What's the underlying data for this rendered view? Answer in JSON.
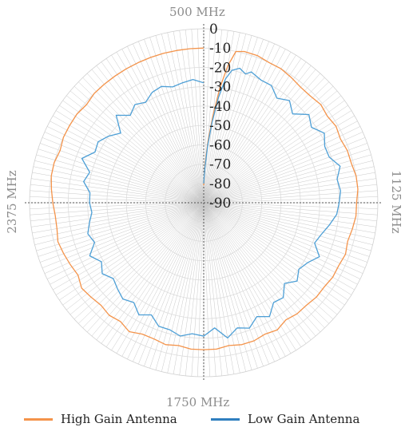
{
  "chart_data": {
    "type": "line",
    "polar": true,
    "title": "",
    "direction_labels": {
      "top": "500 MHz",
      "right": "1125 MHz",
      "bottom": "1750 MHz",
      "left": "2375 MHz"
    },
    "r_ticks": [
      0,
      -10,
      -20,
      -30,
      -40,
      -50,
      -60,
      -70,
      -80,
      -90
    ],
    "rlim": [
      -90,
      0
    ],
    "grid": true,
    "legend_position": "bottom",
    "angle_convention": "degrees clockwise from top (500 MHz at 0°, 1125 MHz at 90°, 1750 MHz at 180°, 2375 MHz at 270°)",
    "series": [
      {
        "name": "High Gain Antenna",
        "color": "#f4934a",
        "angle": [
          0,
          2,
          4,
          6,
          8,
          10,
          12,
          15,
          20,
          25,
          30,
          35,
          40,
          45,
          50,
          55,
          60,
          65,
          70,
          75,
          80,
          85,
          90,
          95,
          100,
          105,
          110,
          115,
          120,
          125,
          130,
          135,
          140,
          145,
          150,
          155,
          160,
          165,
          170,
          175,
          180,
          185,
          190,
          195,
          200,
          205,
          210,
          215,
          220,
          225,
          230,
          235,
          240,
          245,
          250,
          255,
          260,
          265,
          270,
          275,
          280,
          285,
          290,
          295,
          300,
          305,
          310,
          315,
          320,
          325,
          330,
          335,
          340,
          345,
          350,
          355,
          360
        ],
        "value": [
          -81,
          -70,
          -58,
          -45,
          -30,
          -18,
          -10,
          -9,
          -9,
          -10,
          -10,
          -11,
          -12,
          -12,
          -11,
          -12,
          -11,
          -12,
          -11,
          -11,
          -10,
          -10,
          -11,
          -11,
          -12,
          -13,
          -12,
          -13,
          -13,
          -14,
          -14,
          -15,
          -15,
          -16,
          -14,
          -15,
          -14,
          -14,
          -15,
          -14,
          -14,
          -14,
          -15,
          -14,
          -15,
          -15,
          -13,
          -15,
          -14,
          -15,
          -14,
          -13,
          -15,
          -14,
          -13,
          -12,
          -13,
          -13,
          -12,
          -11,
          -10,
          -10,
          -11,
          -10,
          -10,
          -10,
          -11,
          -10,
          -10,
          -10,
          -10,
          -10,
          -10,
          -10,
          -10,
          -10,
          -10
        ]
      },
      {
        "name": "Low Gain Antenna",
        "color": "#4d9fd6",
        "angle": [
          0,
          2,
          4,
          6,
          8,
          10,
          12,
          15,
          18,
          20,
          25,
          30,
          35,
          40,
          45,
          50,
          55,
          60,
          65,
          70,
          75,
          80,
          85,
          90,
          95,
          100,
          105,
          110,
          115,
          120,
          125,
          130,
          135,
          140,
          145,
          150,
          155,
          160,
          165,
          170,
          175,
          180,
          185,
          190,
          195,
          200,
          205,
          210,
          215,
          220,
          225,
          230,
          235,
          240,
          245,
          250,
          255,
          260,
          265,
          270,
          275,
          280,
          285,
          290,
          295,
          300,
          305,
          310,
          315,
          320,
          325,
          330,
          335,
          340,
          345,
          350,
          355,
          360
        ],
        "value": [
          -80,
          -72,
          -60,
          -48,
          -35,
          -25,
          -20,
          -18,
          -20,
          -18,
          -20,
          -20,
          -24,
          -21,
          -25,
          -19,
          -22,
          -18,
          -21,
          -21,
          -17,
          -20,
          -19,
          -20,
          -21,
          -24,
          -27,
          -29,
          -24,
          -28,
          -30,
          -27,
          -31,
          -26,
          -27,
          -22,
          -25,
          -21,
          -23,
          -19,
          -25,
          -21,
          -22,
          -20,
          -22,
          -22,
          -26,
          -23,
          -27,
          -25,
          -27,
          -29,
          -26,
          -29,
          -25,
          -30,
          -28,
          -30,
          -32,
          -31,
          -31,
          -27,
          -29,
          -23,
          -28,
          -27,
          -30,
          -34,
          -26,
          -31,
          -28,
          -30,
          -27,
          -26,
          -28,
          -27,
          -26,
          -28
        ]
      }
    ]
  }
}
